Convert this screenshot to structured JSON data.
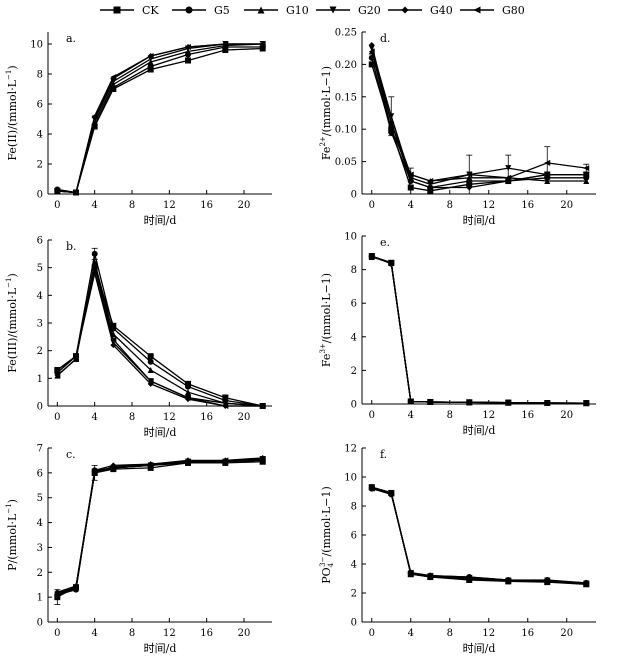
{
  "chart_data": {
    "series_names": [
      "CK",
      "G5",
      "G10",
      "G20",
      "G40",
      "G80"
    ],
    "markers": [
      "square",
      "circle",
      "triangle-up",
      "triangle-down",
      "diamond",
      "triangle-left"
    ],
    "panels": [
      {
        "id": "a",
        "panel_label": "a.",
        "type": "line",
        "ylabel_main": "Fe(II)/(mmol·L",
        "ylabel_sup": "−1",
        "ylabel_end": ")",
        "xlabel": "时间/d",
        "xlim": [
          -1,
          23
        ],
        "ylim": [
          0,
          10.8
        ],
        "xticks": [
          0,
          4,
          8,
          12,
          16,
          20
        ],
        "xtick_labels": [
          "0",
          "4",
          "8",
          "12",
          "16",
          "20"
        ],
        "yticks": [
          0,
          2,
          4,
          6,
          8,
          10
        ],
        "ytick_labels": [
          "0",
          "2",
          "4",
          "6",
          "8",
          "10"
        ],
        "x": [
          0,
          2,
          4,
          6,
          10,
          14,
          18,
          22
        ],
        "series": [
          {
            "name": "CK",
            "values": [
              0.2,
              0.1,
              4.5,
              7.0,
              8.3,
              8.9,
              9.6,
              9.7
            ]
          },
          {
            "name": "G5",
            "values": [
              0.3,
              0.1,
              4.6,
              7.1,
              8.5,
              9.3,
              9.8,
              9.8
            ]
          },
          {
            "name": "G10",
            "values": [
              0.2,
              0.1,
              4.8,
              7.3,
              8.8,
              9.5,
              9.9,
              10.0
            ]
          },
          {
            "name": "G20",
            "values": [
              0.2,
              0.1,
              5.0,
              7.5,
              9.0,
              9.7,
              10.0,
              10.0
            ]
          },
          {
            "name": "G40",
            "values": [
              0.3,
              0.1,
              5.1,
              7.7,
              9.2,
              9.8,
              10.0,
              10.0
            ]
          },
          {
            "name": "G80",
            "values": [
              0.2,
              0.1,
              5.2,
              7.8,
              9.2,
              9.8,
              10.0,
              10.0
            ]
          }
        ],
        "errors": []
      },
      {
        "id": "d",
        "panel_label": "d.",
        "type": "line",
        "ylabel_main": "Fe",
        "ylabel_sup": "2+",
        "ylabel_end": "/(mmol·L−1)",
        "xlabel": "时间/d",
        "xlim": [
          -1,
          23
        ],
        "ylim": [
          0,
          0.25
        ],
        "xticks": [
          0,
          4,
          8,
          12,
          16,
          20
        ],
        "xtick_labels": [
          "0",
          "4",
          "8",
          "12",
          "16",
          "20"
        ],
        "yticks": [
          0,
          0.05,
          0.1,
          0.15,
          0.2,
          0.25
        ],
        "ytick_labels": [
          "0",
          "0.05",
          "0.10",
          "0.15",
          "0.20",
          "0.25"
        ],
        "x": [
          0,
          2,
          4,
          6,
          10,
          14,
          18,
          22
        ],
        "series": [
          {
            "name": "CK",
            "values": [
              0.2,
              0.1,
              0.01,
              0.005,
              0.015,
              0.02,
              0.03,
              0.03
            ]
          },
          {
            "name": "G5",
            "values": [
              0.21,
              0.095,
              0.02,
              0.01,
              0.02,
              0.02,
              0.025,
              0.025
            ]
          },
          {
            "name": "G10",
            "values": [
              0.22,
              0.11,
              0.03,
              0.02,
              0.025,
              0.025,
              0.02,
              0.02
            ]
          },
          {
            "name": "G20",
            "values": [
              0.225,
              0.12,
              0.025,
              0.015,
              0.03,
              0.04,
              0.03,
              0.03
            ]
          },
          {
            "name": "G40",
            "values": [
              0.23,
              0.11,
              0.02,
              0.01,
              0.01,
              0.02,
              0.03,
              0.03
            ]
          },
          {
            "name": "G80",
            "values": [
              0.22,
              0.1,
              0.03,
              0.02,
              0.03,
              0.025,
              0.048,
              0.04
            ]
          }
        ],
        "errors": [
          {
            "x": 2,
            "y": 0.12,
            "e": 0.03
          },
          {
            "x": 10,
            "y": 0.03,
            "e": 0.03
          },
          {
            "x": 14,
            "y": 0.04,
            "e": 0.02
          },
          {
            "x": 18,
            "y": 0.048,
            "e": 0.025
          },
          {
            "x": 4,
            "y": 0.03,
            "e": 0.01
          },
          {
            "x": 22,
            "y": 0.04,
            "e": 0.006
          }
        ]
      },
      {
        "id": "b",
        "panel_label": "b.",
        "type": "line",
        "ylabel_main": "Fe(III)/(mmol·L",
        "ylabel_sup": "−1",
        "ylabel_end": ")",
        "xlabel": "时间/d",
        "xlim": [
          -1,
          23
        ],
        "ylim": [
          0,
          6
        ],
        "xticks": [
          0,
          4,
          8,
          12,
          16,
          20
        ],
        "xtick_labels": [
          "0",
          "4",
          "8",
          "12",
          "16",
          "20"
        ],
        "yticks": [
          0,
          1,
          2,
          3,
          4,
          5,
          6
        ],
        "ytick_labels": [
          "0",
          "1",
          "2",
          "3",
          "4",
          "5",
          "6"
        ],
        "x": [
          0,
          2,
          4,
          6,
          10,
          14,
          18,
          22
        ],
        "series": [
          {
            "name": "CK",
            "values": [
              1.3,
              1.8,
              5.0,
              2.9,
              1.8,
              0.8,
              0.3,
              0.0
            ]
          },
          {
            "name": "G5",
            "values": [
              1.2,
              1.8,
              5.5,
              2.8,
              1.6,
              0.7,
              0.2,
              0.0
            ]
          },
          {
            "name": "G10",
            "values": [
              1.1,
              1.7,
              5.2,
              2.6,
              1.3,
              0.5,
              0.1,
              0.0
            ]
          },
          {
            "name": "G20",
            "values": [
              1.3,
              1.8,
              5.0,
              2.3,
              0.9,
              0.3,
              0.1,
              0.0
            ]
          },
          {
            "name": "G40",
            "values": [
              1.2,
              1.8,
              4.8,
              2.2,
              0.8,
              0.25,
              0.0,
              0.0
            ]
          },
          {
            "name": "G80",
            "values": [
              1.1,
              1.7,
              5.1,
              2.4,
              0.9,
              0.3,
              0.0,
              0.0
            ]
          }
        ],
        "errors": [
          {
            "x": 4,
            "y": 5.5,
            "e": 0.2
          },
          {
            "x": 18,
            "y": 0.3,
            "e": 0.1
          }
        ]
      },
      {
        "id": "e",
        "panel_label": "e.",
        "type": "line",
        "ylabel_main": "Fe",
        "ylabel_sup": "3+",
        "ylabel_end": "/(mmol·L−1)",
        "xlabel": "时间/d",
        "xlim": [
          -1,
          23
        ],
        "ylim": [
          0,
          10
        ],
        "xticks": [
          0,
          4,
          8,
          12,
          16,
          20
        ],
        "xtick_labels": [
          "0",
          "4",
          "8",
          "12",
          "16",
          "20"
        ],
        "yticks": [
          0,
          2,
          4,
          6,
          8,
          10
        ],
        "ytick_labels": [
          "0",
          "2",
          "4",
          "6",
          "8",
          "10"
        ],
        "x": [
          0,
          2,
          4,
          6,
          10,
          14,
          18,
          22
        ],
        "series": [
          {
            "name": "CK",
            "values": [
              8.8,
              8.4,
              0.15,
              0.12,
              0.1,
              0.08,
              0.06,
              0.05
            ]
          },
          {
            "name": "G5",
            "values": [
              8.8,
              8.35,
              0.15,
              0.12,
              0.1,
              0.08,
              0.06,
              0.05
            ]
          },
          {
            "name": "G10",
            "values": [
              8.75,
              8.4,
              0.15,
              0.12,
              0.1,
              0.08,
              0.06,
              0.05
            ]
          },
          {
            "name": "G20",
            "values": [
              8.8,
              8.4,
              0.15,
              0.12,
              0.1,
              0.08,
              0.06,
              0.05
            ]
          },
          {
            "name": "G40",
            "values": [
              8.8,
              8.35,
              0.15,
              0.12,
              0.1,
              0.08,
              0.06,
              0.05
            ]
          },
          {
            "name": "G80",
            "values": [
              8.8,
              8.4,
              0.15,
              0.12,
              0.1,
              0.08,
              0.06,
              0.05
            ]
          }
        ],
        "errors": []
      },
      {
        "id": "c",
        "panel_label": "c.",
        "type": "line",
        "ylabel_main": "P/(mmol·L",
        "ylabel_sup": "−1",
        "ylabel_end": ")",
        "xlabel": "时间/d",
        "xlim": [
          -1,
          23
        ],
        "ylim": [
          0,
          7
        ],
        "xticks": [
          0,
          4,
          8,
          12,
          16,
          20
        ],
        "xtick_labels": [
          "0",
          "4",
          "8",
          "12",
          "16",
          "20"
        ],
        "yticks": [
          0,
          1,
          2,
          3,
          4,
          5,
          6,
          7
        ],
        "ytick_labels": [
          "0",
          "1",
          "2",
          "3",
          "4",
          "5",
          "6",
          "7"
        ],
        "x": [
          0,
          2,
          4,
          6,
          10,
          14,
          18,
          22
        ],
        "series": [
          {
            "name": "CK",
            "values": [
              1.0,
              1.4,
              6.0,
              6.15,
              6.2,
              6.4,
              6.4,
              6.45
            ]
          },
          {
            "name": "G5",
            "values": [
              1.1,
              1.3,
              6.1,
              6.2,
              6.3,
              6.4,
              6.45,
              6.5
            ]
          },
          {
            "name": "G10",
            "values": [
              1.15,
              1.4,
              6.0,
              6.25,
              6.35,
              6.45,
              6.5,
              6.55
            ]
          },
          {
            "name": "G20",
            "values": [
              1.1,
              1.35,
              6.05,
              6.2,
              6.3,
              6.45,
              6.45,
              6.55
            ]
          },
          {
            "name": "G40",
            "values": [
              1.2,
              1.45,
              6.1,
              6.3,
              6.35,
              6.5,
              6.5,
              6.6
            ]
          },
          {
            "name": "G80",
            "values": [
              1.1,
              1.4,
              6.0,
              6.2,
              6.3,
              6.45,
              6.5,
              6.55
            ]
          }
        ],
        "errors": [
          {
            "x": 0,
            "y": 1.0,
            "e": 0.3
          },
          {
            "x": 4,
            "y": 6.0,
            "e": 0.3
          },
          {
            "x": 22,
            "y": 6.5,
            "e": 0.15
          }
        ]
      },
      {
        "id": "f",
        "panel_label": "f.",
        "type": "line",
        "ylabel_main": "PO",
        "ylabel_sup": "3−",
        "ylabel_sub": "4",
        "ylabel_end": "/(mmol·L−1)",
        "xlabel": "时间/d",
        "xlim": [
          -1,
          23
        ],
        "ylim": [
          0,
          12
        ],
        "xticks": [
          0,
          4,
          8,
          12,
          16,
          20
        ],
        "xtick_labels": [
          "0",
          "4",
          "8",
          "12",
          "16",
          "20"
        ],
        "yticks": [
          0,
          2,
          4,
          6,
          8,
          10,
          12
        ],
        "ytick_labels": [
          "0",
          "2",
          "4",
          "6",
          "8",
          "10",
          "12"
        ],
        "x": [
          0,
          2,
          4,
          6,
          10,
          14,
          18,
          22
        ],
        "series": [
          {
            "name": "CK",
            "values": [
              9.3,
              8.9,
              3.3,
              3.1,
              2.9,
              2.8,
              2.75,
              2.6
            ]
          },
          {
            "name": "G5",
            "values": [
              9.2,
              8.8,
              3.4,
              3.2,
              3.1,
              2.9,
              2.9,
              2.7
            ]
          },
          {
            "name": "G10",
            "values": [
              9.3,
              8.9,
              3.3,
              3.1,
              2.95,
              2.85,
              2.8,
              2.65
            ]
          },
          {
            "name": "G20",
            "values": [
              9.25,
              8.85,
              3.35,
              3.15,
              3.0,
              2.85,
              2.85,
              2.65
            ]
          },
          {
            "name": "G40",
            "values": [
              9.3,
              8.9,
              3.3,
              3.2,
              3.1,
              2.9,
              2.85,
              2.7
            ]
          },
          {
            "name": "G80",
            "values": [
              9.2,
              8.85,
              3.4,
              3.2,
              3.05,
              2.85,
              2.8,
              2.65
            ]
          }
        ],
        "errors": []
      }
    ]
  }
}
